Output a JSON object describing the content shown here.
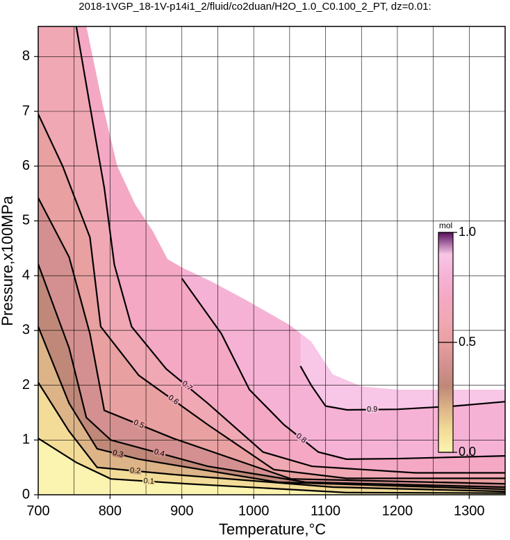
{
  "chart_data": {
    "type": "contour",
    "title": "2018-1VGP_18-1V-p14i1_2/fluid/co2duan/H2O_1.0_C0.100_2_PT, dz=0.01:",
    "x_label": "Temperature,°C",
    "y_label": "Pressure,x100MPa",
    "xlim": [
      700,
      1350
    ],
    "ylim": [
      0,
      8.55
    ],
    "xticks": [
      700,
      800,
      900,
      1000,
      1100,
      1200,
      1300
    ],
    "yticks": [
      0,
      1,
      2,
      3,
      4,
      5,
      6,
      7,
      8
    ],
    "xgrid": [
      700,
      750,
      800,
      850,
      900,
      950,
      1000,
      1050,
      1100,
      1150,
      1200,
      1250,
      1300,
      1350
    ],
    "grid": true,
    "region": {
      "x": [
        700,
        767,
        790,
        810,
        835,
        860,
        880,
        900,
        940,
        990,
        1050,
        1080,
        1110,
        1150,
        1200,
        1350,
        1350,
        700
      ],
      "y": [
        8.55,
        8.55,
        7.1,
        6.0,
        5.3,
        4.8,
        4.3,
        4.15,
        3.9,
        3.55,
        3.1,
        2.8,
        2.2,
        1.98,
        1.92,
        1.92,
        0,
        0
      ]
    },
    "contours": [
      {
        "level": 0.1,
        "x": [
          700,
          753,
          801,
          907,
          1129,
          1350
        ],
        "y": [
          1.03,
          0.59,
          0.29,
          0.2,
          0.04,
          0.03
        ]
      },
      {
        "level": 0.2,
        "x": [
          700,
          743,
          782,
          888,
          1110,
          1350
        ],
        "y": [
          2.05,
          1.16,
          0.5,
          0.37,
          0.14,
          0.06
        ]
      },
      {
        "level": 0.3,
        "x": [
          700,
          743,
          782,
          840,
          1033,
          1350
        ],
        "y": [
          3.07,
          1.67,
          0.84,
          0.65,
          0.23,
          0.1
        ]
      },
      {
        "level": 0.4,
        "x": [
          700,
          743,
          767,
          801,
          936,
          1072,
          1350
        ],
        "y": [
          4.21,
          2.68,
          1.41,
          1.0,
          0.52,
          0.23,
          0.14
        ]
      },
      {
        "level": 0.5,
        "x": [
          700,
          743,
          772,
          792,
          888,
          1052,
          1350
        ],
        "y": [
          5.42,
          4.34,
          2.94,
          1.54,
          1.03,
          0.29,
          0.2
        ]
      },
      {
        "level": 0.6,
        "x": [
          700,
          734,
          772,
          787,
          840,
          936,
          1028,
          1129,
          1350
        ],
        "y": [
          6.95,
          6.0,
          4.7,
          3.07,
          2.18,
          1.28,
          0.46,
          0.3,
          0.3
        ]
      },
      {
        "level": 0.7,
        "x": [
          753,
          772,
          792,
          806,
          830,
          878,
          936,
          1013,
          1081,
          1225,
          1350
        ],
        "y": [
          8.55,
          7.1,
          5.6,
          4.2,
          3.07,
          2.3,
          1.67,
          0.78,
          0.52,
          0.4,
          0.4
        ]
      },
      {
        "level": 0.8,
        "x": [
          900,
          955,
          994,
          1042,
          1090,
          1129,
          1200,
          1350
        ],
        "y": [
          3.95,
          2.94,
          1.92,
          1.28,
          0.78,
          0.65,
          0.66,
          0.71
        ]
      },
      {
        "level": 0.9,
        "x": [
          1065,
          1080,
          1100,
          1130,
          1200,
          1280,
          1350
        ],
        "y": [
          2.35,
          2.0,
          1.62,
          1.55,
          1.56,
          1.62,
          1.7
        ]
      }
    ],
    "colorbar": {
      "label": "mol",
      "clim": [
        0,
        1
      ],
      "ticks": [
        {
          "value": 0,
          "label": "0.0"
        },
        0.5,
        {
          "value": 1,
          "label": "1.0"
        }
      ],
      "colors": [
        "#fbf3b0",
        "#f2dc98",
        "#dcb488",
        "#c08878",
        "#d49090",
        "#e8a0a0",
        "#f0a8b4",
        "#f4a8c4",
        "#f6b2d4",
        "#f8c6e6",
        "#5a1060"
      ]
    }
  }
}
